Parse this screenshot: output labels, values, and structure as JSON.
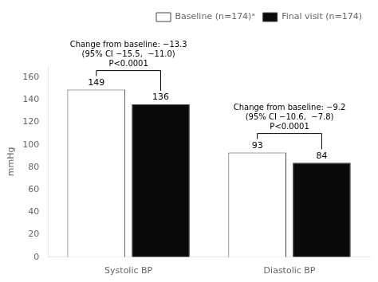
{
  "chart_data": {
    "type": "bar",
    "categories": [
      "Systolic BP",
      "Diastolic BP"
    ],
    "series": [
      {
        "name": "Baseline (n=174)ᵃ",
        "color": "#ffffff",
        "values": [
          149,
          93
        ]
      },
      {
        "name": "Final visit (n=174)",
        "color": "#0a0a0a",
        "values": [
          136,
          84
        ]
      }
    ],
    "ylabel": "mmHg",
    "ylim": [
      0,
      170
    ],
    "yticks": [
      0,
      20,
      40,
      60,
      80,
      100,
      120,
      140,
      160
    ],
    "grid": false,
    "legend": "upper right",
    "data_labels": true,
    "annotations": [
      {
        "category": "Systolic BP",
        "text": "Change from baseline: −13.3\n(95% CI −15.5,  −11.0)\nP<0.0001"
      },
      {
        "category": "Diastolic BP",
        "text": "Change from baseline: −9.2\n(95% CI −10.6,  −7.8)\nP<0.0001"
      }
    ]
  }
}
